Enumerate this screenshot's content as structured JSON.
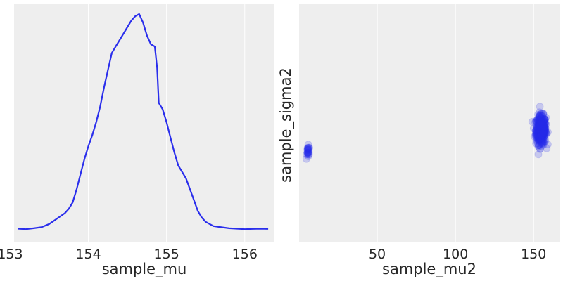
{
  "chart_data": [
    {
      "type": "line",
      "title": "",
      "xlabel": "sample_mu",
      "ylabel": "",
      "grid": true,
      "xlim": [
        153.05,
        156.38
      ],
      "xticks": [
        153,
        154,
        155,
        156
      ],
      "xtick_labels": [
        "153",
        "154",
        "155",
        "156"
      ],
      "series": [
        {
          "color": "#2a2eec",
          "x": [
            153.1,
            153.2,
            153.3,
            153.4,
            153.5,
            153.6,
            153.7,
            153.75,
            153.8,
            153.85,
            153.9,
            153.95,
            154.0,
            154.05,
            154.1,
            154.15,
            154.2,
            154.25,
            154.3,
            154.35,
            154.4,
            154.45,
            154.5,
            154.55,
            154.6,
            154.65,
            154.7,
            154.75,
            154.8,
            154.85,
            154.88,
            154.9,
            154.95,
            155.0,
            155.05,
            155.1,
            155.15,
            155.2,
            155.25,
            155.3,
            155.35,
            155.4,
            155.45,
            155.5,
            155.55,
            155.6,
            155.7,
            155.8,
            155.9,
            156.0,
            156.1,
            156.2,
            156.3
          ],
          "values": [
            0.008,
            0.006,
            0.01,
            0.015,
            0.03,
            0.055,
            0.08,
            0.1,
            0.13,
            0.19,
            0.26,
            0.33,
            0.39,
            0.44,
            0.5,
            0.57,
            0.66,
            0.74,
            0.82,
            0.85,
            0.88,
            0.91,
            0.94,
            0.97,
            0.99,
            1.0,
            0.96,
            0.9,
            0.86,
            0.85,
            0.75,
            0.59,
            0.56,
            0.5,
            0.43,
            0.36,
            0.3,
            0.27,
            0.24,
            0.19,
            0.14,
            0.09,
            0.06,
            0.04,
            0.03,
            0.02,
            0.015,
            0.01,
            0.008,
            0.006,
            0.007,
            0.008,
            0.007
          ]
        }
      ]
    },
    {
      "type": "scatter",
      "title": "",
      "xlabel": "sample_mu2",
      "ylabel": "sample_sigma2",
      "grid": true,
      "xlim": [
        0,
        167
      ],
      "xticks": [
        50,
        100,
        150
      ],
      "xtick_labels": [
        "50",
        "100",
        "150"
      ],
      "ylim": [
        0,
        1
      ],
      "yticks": [],
      "series": [
        {
          "color": "#2a2eec",
          "alpha": 0.05,
          "clusters": [
            {
              "x_center": 154.7,
              "x_spread": 1.6,
              "y_center": 0.47,
              "y_spread": 0.03,
              "count": 420
            },
            {
              "x_center": 5.8,
              "x_spread": 0.5,
              "y_center": 0.38,
              "y_spread": 0.012,
              "count": 25
            }
          ]
        }
      ]
    }
  ]
}
